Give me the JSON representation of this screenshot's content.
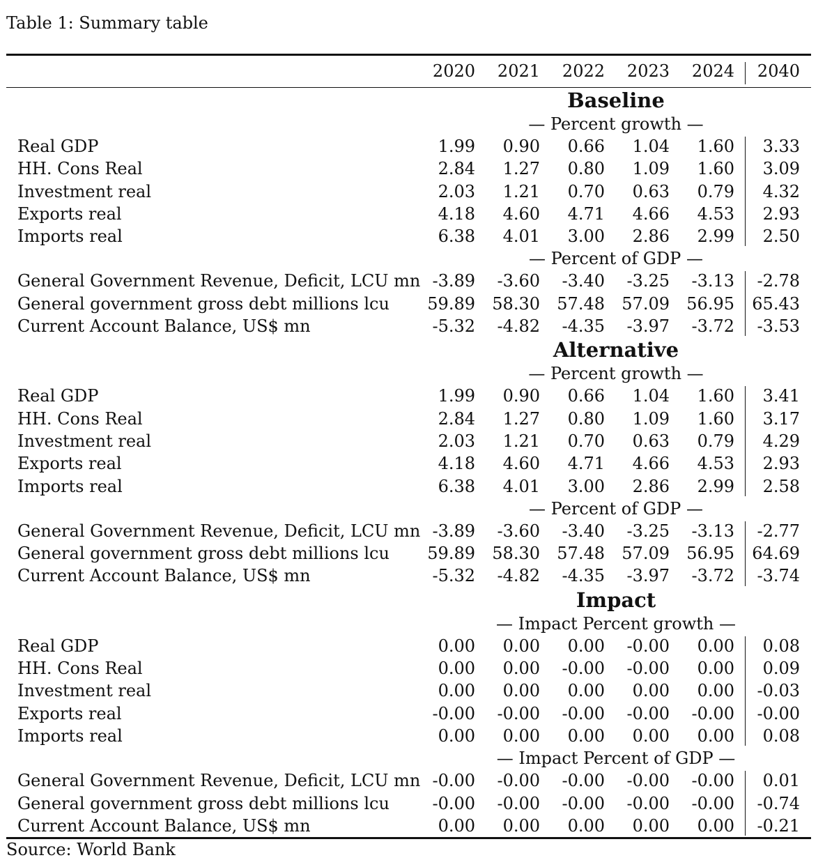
{
  "caption": "Table 1: Summary table",
  "years": [
    "2020",
    "2021",
    "2022",
    "2023",
    "2024",
    "2040"
  ],
  "sections": [
    {
      "title": "Baseline",
      "groups": [
        {
          "subtitle": "— Percent growth —",
          "rows": [
            {
              "label": "Real GDP",
              "values": [
                "1.99",
                "0.90",
                "0.66",
                "1.04",
                "1.60",
                "3.33"
              ]
            },
            {
              "label": "HH. Cons Real",
              "values": [
                "2.84",
                "1.27",
                "0.80",
                "1.09",
                "1.60",
                "3.09"
              ]
            },
            {
              "label": "Investment real",
              "values": [
                "2.03",
                "1.21",
                "0.70",
                "0.63",
                "0.79",
                "4.32"
              ]
            },
            {
              "label": "Exports real",
              "values": [
                "4.18",
                "4.60",
                "4.71",
                "4.66",
                "4.53",
                "2.93"
              ]
            },
            {
              "label": "Imports real",
              "values": [
                "6.38",
                "4.01",
                "3.00",
                "2.86",
                "2.99",
                "2.50"
              ]
            }
          ]
        },
        {
          "subtitle": "— Percent of GDP —",
          "rows": [
            {
              "label": "General Government Revenue, Deficit, LCU mn",
              "values": [
                "-3.89",
                "-3.60",
                "-3.40",
                "-3.25",
                "-3.13",
                "-2.78"
              ]
            },
            {
              "label": "General government gross debt millions lcu",
              "values": [
                "59.89",
                "58.30",
                "57.48",
                "57.09",
                "56.95",
                "65.43"
              ]
            },
            {
              "label": "Current Account Balance, US$ mn",
              "values": [
                "-5.32",
                "-4.82",
                "-4.35",
                "-3.97",
                "-3.72",
                "-3.53"
              ]
            }
          ]
        }
      ]
    },
    {
      "title": "Alternative",
      "groups": [
        {
          "subtitle": "— Percent growth —",
          "rows": [
            {
              "label": "Real GDP",
              "values": [
                "1.99",
                "0.90",
                "0.66",
                "1.04",
                "1.60",
                "3.41"
              ]
            },
            {
              "label": "HH. Cons Real",
              "values": [
                "2.84",
                "1.27",
                "0.80",
                "1.09",
                "1.60",
                "3.17"
              ]
            },
            {
              "label": "Investment real",
              "values": [
                "2.03",
                "1.21",
                "0.70",
                "0.63",
                "0.79",
                "4.29"
              ]
            },
            {
              "label": "Exports real",
              "values": [
                "4.18",
                "4.60",
                "4.71",
                "4.66",
                "4.53",
                "2.93"
              ]
            },
            {
              "label": "Imports real",
              "values": [
                "6.38",
                "4.01",
                "3.00",
                "2.86",
                "2.99",
                "2.58"
              ]
            }
          ]
        },
        {
          "subtitle": "— Percent of GDP —",
          "rows": [
            {
              "label": "General Government Revenue, Deficit, LCU mn",
              "values": [
                "-3.89",
                "-3.60",
                "-3.40",
                "-3.25",
                "-3.13",
                "-2.77"
              ]
            },
            {
              "label": "General government gross debt millions lcu",
              "values": [
                "59.89",
                "58.30",
                "57.48",
                "57.09",
                "56.95",
                "64.69"
              ]
            },
            {
              "label": "Current Account Balance, US$ mn",
              "values": [
                "-5.32",
                "-4.82",
                "-4.35",
                "-3.97",
                "-3.72",
                "-3.74"
              ]
            }
          ]
        }
      ]
    },
    {
      "title": "Impact",
      "groups": [
        {
          "subtitle": "— Impact Percent growth —",
          "rows": [
            {
              "label": "Real GDP",
              "values": [
                "0.00",
                "0.00",
                "0.00",
                "-0.00",
                "0.00",
                "0.08"
              ]
            },
            {
              "label": "HH. Cons Real",
              "values": [
                "0.00",
                "0.00",
                "-0.00",
                "-0.00",
                "0.00",
                "0.09"
              ]
            },
            {
              "label": "Investment real",
              "values": [
                "0.00",
                "0.00",
                "0.00",
                "0.00",
                "0.00",
                "-0.03"
              ]
            },
            {
              "label": "Exports real",
              "values": [
                "-0.00",
                "-0.00",
                "-0.00",
                "-0.00",
                "-0.00",
                "-0.00"
              ]
            },
            {
              "label": "Imports real",
              "values": [
                "0.00",
                "0.00",
                "0.00",
                "0.00",
                "0.00",
                "0.08"
              ]
            }
          ]
        },
        {
          "subtitle": "— Impact Percent of GDP —",
          "rows": [
            {
              "label": "General Government Revenue, Deficit, LCU mn",
              "values": [
                "-0.00",
                "-0.00",
                "-0.00",
                "-0.00",
                "-0.00",
                "0.01"
              ]
            },
            {
              "label": "General government gross debt millions lcu",
              "values": [
                "-0.00",
                "-0.00",
                "-0.00",
                "-0.00",
                "-0.00",
                "-0.74"
              ]
            },
            {
              "label": "Current Account Balance, US$ mn",
              "values": [
                "0.00",
                "0.00",
                "0.00",
                "0.00",
                "0.00",
                "-0.21"
              ]
            }
          ]
        }
      ]
    }
  ],
  "source": "Source:  World Bank"
}
